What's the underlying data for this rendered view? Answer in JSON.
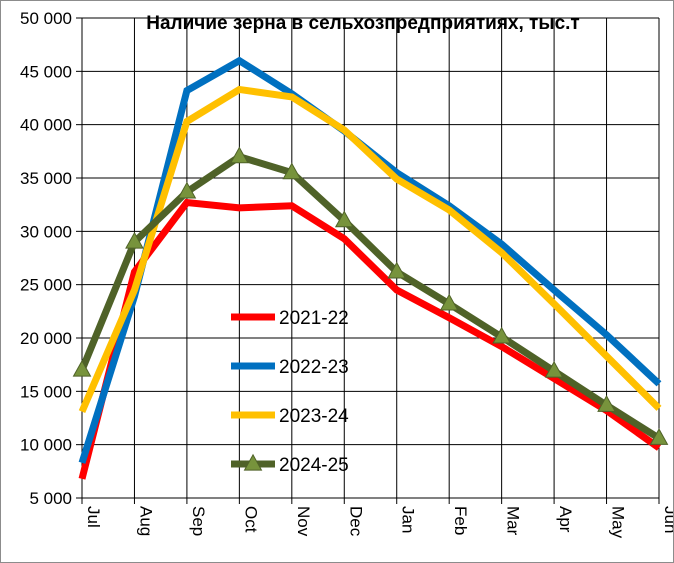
{
  "chart_data": {
    "type": "line",
    "title": "Наличие зерна в сельхозпредприятиях, тыс.т",
    "categories": [
      "Jul",
      "Aug",
      "Sep",
      "Oct",
      "Nov",
      "Dec",
      "Jan",
      "Feb",
      "Mar",
      "Apr",
      "May",
      "Jun"
    ],
    "ylim": [
      5000,
      50000
    ],
    "yticks": [
      5000,
      10000,
      15000,
      20000,
      25000,
      30000,
      35000,
      40000,
      45000,
      50000
    ],
    "ytick_labels": [
      "5 000",
      "10 000",
      "15 000",
      "20 000",
      "25 000",
      "30 000",
      "35 000",
      "40 000",
      "45 000",
      "50 000"
    ],
    "grid": "vertical and horizontal",
    "legend_position": "inside, center-left",
    "series": [
      {
        "name": "2021-22",
        "color": "#ff0000",
        "marker": "none",
        "values": [
          6800,
          26200,
          32700,
          32200,
          32400,
          29300,
          24500,
          21900,
          19200,
          16200,
          13200,
          9700
        ]
      },
      {
        "name": "2022-23",
        "color": "#0070c0",
        "marker": "none",
        "values": [
          8300,
          23900,
          43200,
          46000,
          42900,
          39400,
          35500,
          32400,
          28800,
          24500,
          20300,
          15700
        ]
      },
      {
        "name": "2023-24",
        "color": "#ffc000",
        "marker": "none",
        "values": [
          13100,
          24500,
          40300,
          43300,
          42600,
          39500,
          34900,
          32000,
          28000,
          23200,
          18300,
          13400
        ]
      },
      {
        "name": "2024-25",
        "color": "#4f6228",
        "marker": "triangle",
        "marker_color": "#77933c",
        "values": [
          17000,
          29000,
          33700,
          37000,
          35500,
          31000,
          26200,
          23200,
          20100,
          16900,
          13700,
          10600
        ]
      }
    ]
  }
}
